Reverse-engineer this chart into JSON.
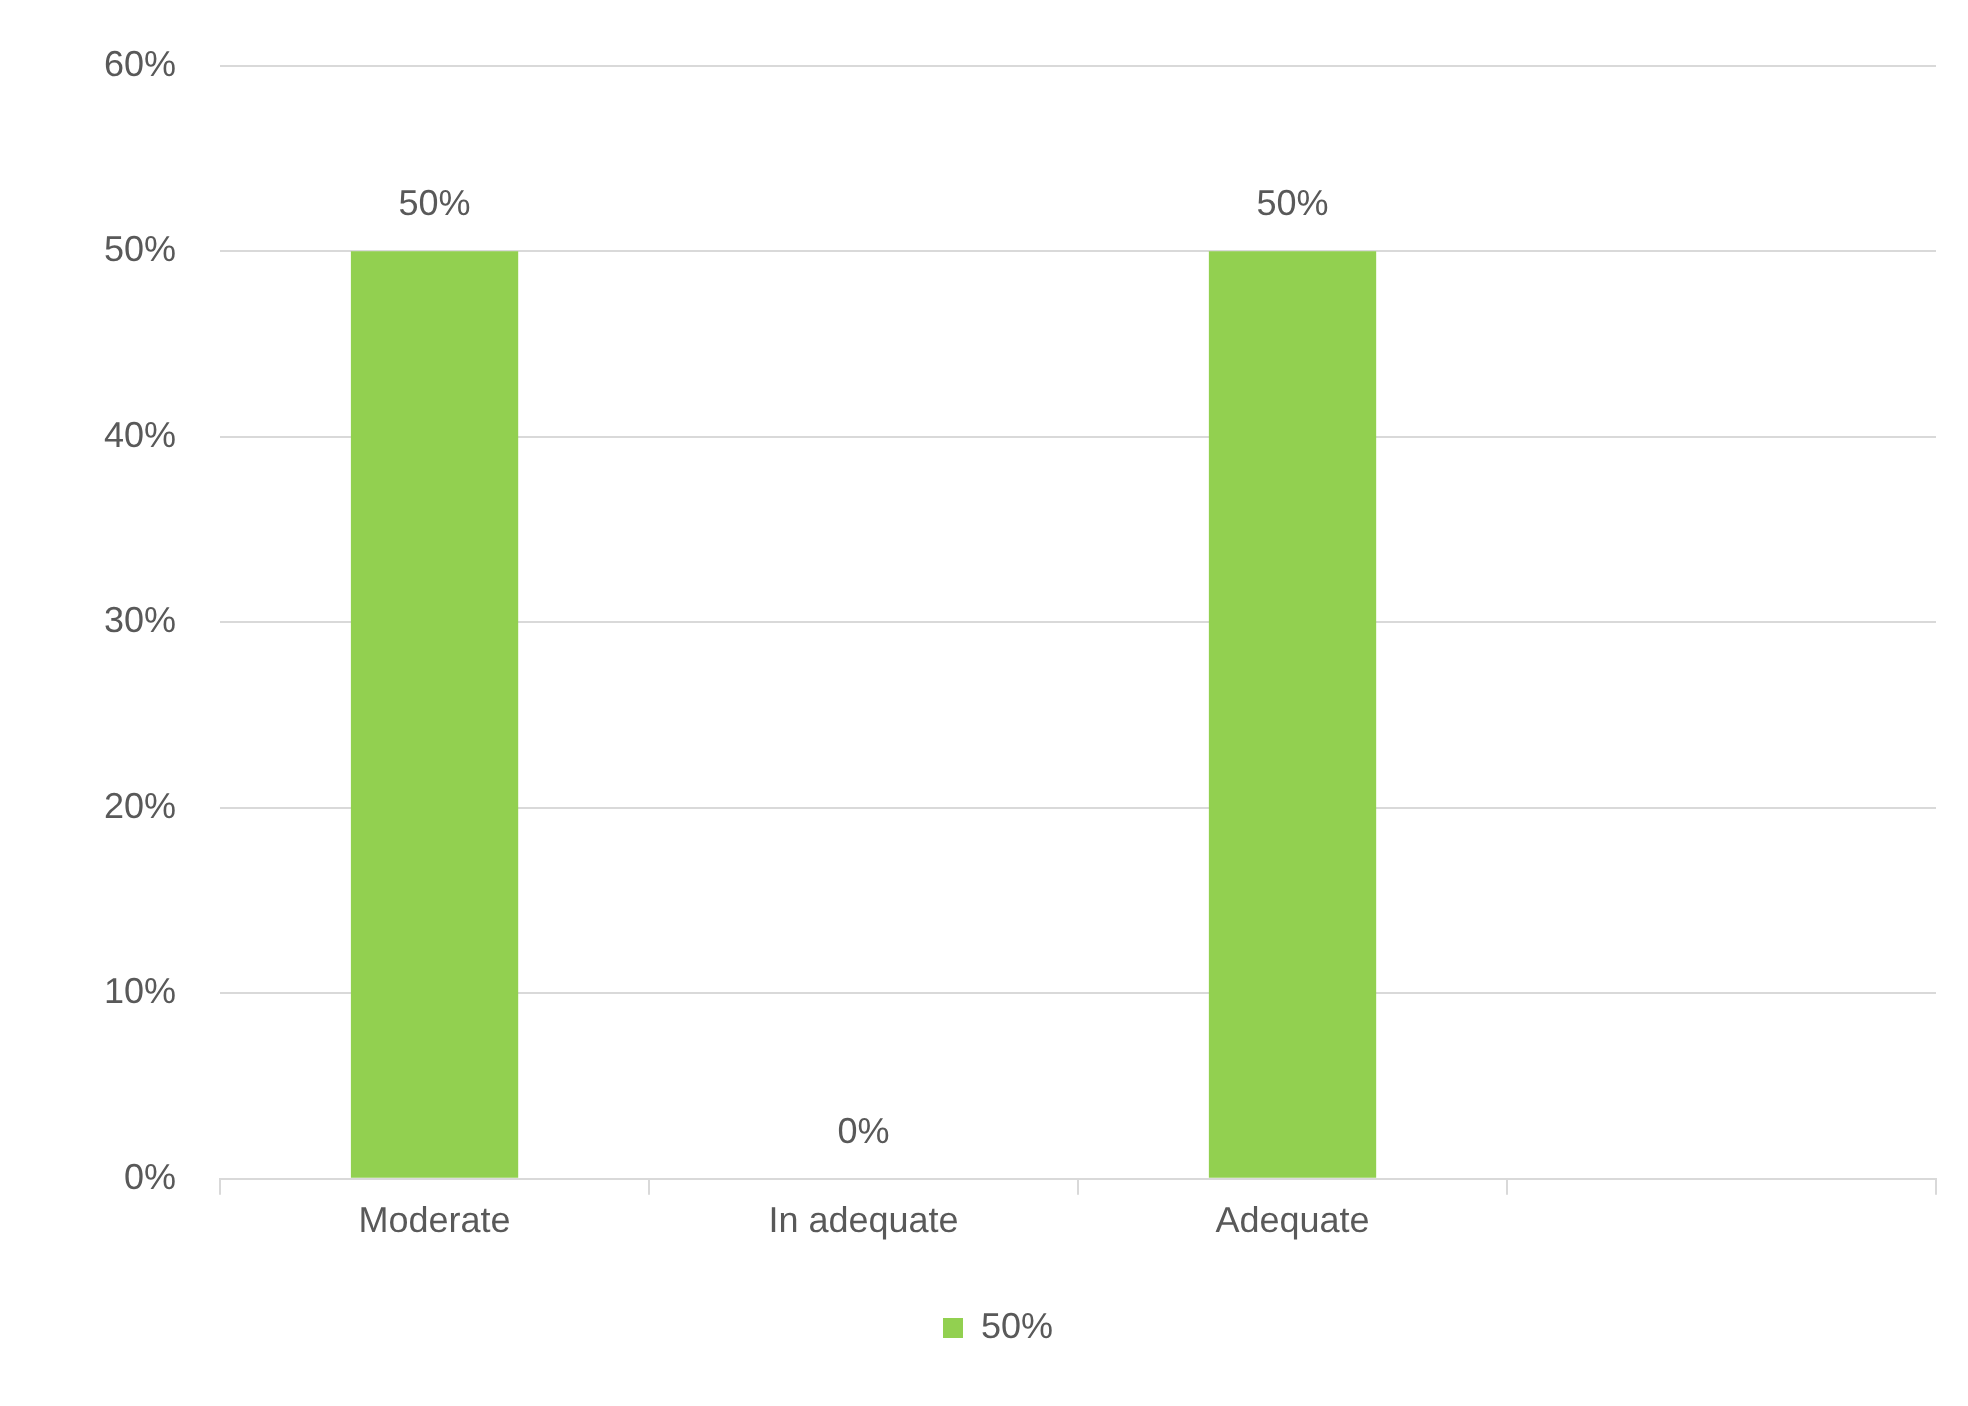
{
  "chart_data": {
    "type": "bar",
    "categories": [
      "Moderate",
      "In adequate",
      "Adequate",
      null
    ],
    "series": [
      {
        "name": "50%",
        "color": "#92d050",
        "values": [
          50,
          0,
          50,
          null
        ],
        "value_labels": [
          "50%",
          "0%",
          "50%",
          null
        ]
      }
    ],
    "ylim": [
      0,
      60
    ],
    "yticks": [
      {
        "value": 0,
        "label": "0%"
      },
      {
        "value": 10,
        "label": "10%"
      },
      {
        "value": 20,
        "label": "20%"
      },
      {
        "value": 30,
        "label": "30%"
      },
      {
        "value": 40,
        "label": "40%"
      },
      {
        "value": 50,
        "label": "50%"
      },
      {
        "value": 60,
        "label": "60%"
      }
    ],
    "grid": "y",
    "legend": "bottom"
  }
}
